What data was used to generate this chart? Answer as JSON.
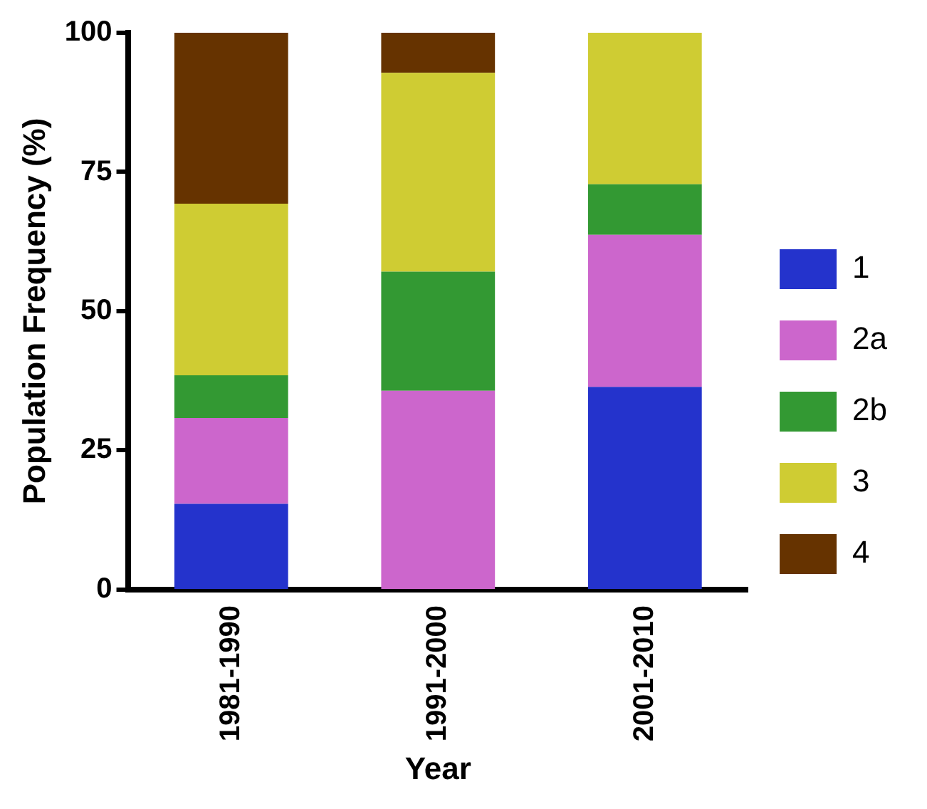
{
  "chart_data": {
    "type": "bar",
    "xlabel": "Year",
    "ylabel": "Population Frequency (%)",
    "categories": [
      "1981-1990",
      "1991-2000",
      "2001-2010"
    ],
    "stacked": true,
    "series": [
      {
        "name": "1",
        "color": "#2433cc",
        "values": [
          15.4,
          0,
          36.4
        ]
      },
      {
        "name": "2a",
        "color": "#cc66cc",
        "values": [
          15.4,
          35.7,
          27.3
        ]
      },
      {
        "name": "2b",
        "color": "#339933",
        "values": [
          7.7,
          21.4,
          9.1
        ]
      },
      {
        "name": "3",
        "color": "#cfcc33",
        "values": [
          30.8,
          35.7,
          27.2
        ]
      },
      {
        "name": "4",
        "color": "#663300",
        "values": [
          30.7,
          7.2,
          0
        ]
      }
    ],
    "ylim": [
      0,
      100
    ],
    "yticks": [
      0,
      25,
      50,
      75,
      100
    ],
    "grid": false,
    "legend": "right"
  }
}
